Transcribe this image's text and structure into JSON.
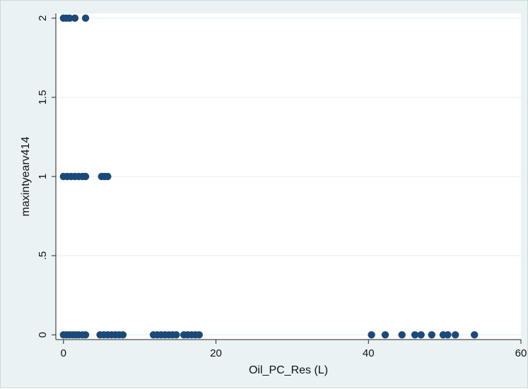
{
  "chart_data": {
    "type": "scatter",
    "title": "",
    "xlabel": "Oil_PC_Res (L)",
    "ylabel": "maxintyearv414",
    "xlim": [
      -1,
      60
    ],
    "ylim": [
      -0.03,
      2.03
    ],
    "x_ticks": [
      "0",
      "20",
      "40",
      "60"
    ],
    "x_tick_values": [
      0,
      20,
      40,
      60
    ],
    "y_ticks": [
      "0",
      ".5",
      "1",
      "1.5",
      "2"
    ],
    "y_tick_values": [
      0,
      0.5,
      1,
      1.5,
      2
    ],
    "grid": true,
    "colors": {
      "background": "#eaf2f3",
      "plot_area": "#ffffff",
      "grid": "#eaf2f3",
      "marker": "#1a4a7a"
    },
    "series": [
      {
        "points": [
          {
            "x": 0.0,
            "y": 2
          },
          {
            "x": 0.4,
            "y": 2
          },
          {
            "x": 0.8,
            "y": 2
          },
          {
            "x": 1.5,
            "y": 2
          },
          {
            "x": 2.9,
            "y": 2
          },
          {
            "x": 0.0,
            "y": 1
          },
          {
            "x": 0.5,
            "y": 1
          },
          {
            "x": 1.0,
            "y": 1
          },
          {
            "x": 1.5,
            "y": 1
          },
          {
            "x": 2.0,
            "y": 1
          },
          {
            "x": 2.5,
            "y": 1
          },
          {
            "x": 2.9,
            "y": 1
          },
          {
            "x": 5.0,
            "y": 1
          },
          {
            "x": 5.4,
            "y": 1
          },
          {
            "x": 5.8,
            "y": 1
          },
          {
            "x": 0.0,
            "y": 0
          },
          {
            "x": 0.4,
            "y": 0
          },
          {
            "x": 0.8,
            "y": 0
          },
          {
            "x": 1.2,
            "y": 0
          },
          {
            "x": 1.6,
            "y": 0
          },
          {
            "x": 2.0,
            "y": 0
          },
          {
            "x": 2.5,
            "y": 0
          },
          {
            "x": 2.9,
            "y": 0
          },
          {
            "x": 4.8,
            "y": 0
          },
          {
            "x": 5.3,
            "y": 0
          },
          {
            "x": 5.8,
            "y": 0
          },
          {
            "x": 6.3,
            "y": 0
          },
          {
            "x": 6.8,
            "y": 0
          },
          {
            "x": 7.3,
            "y": 0
          },
          {
            "x": 7.8,
            "y": 0
          },
          {
            "x": 11.8,
            "y": 0
          },
          {
            "x": 12.3,
            "y": 0
          },
          {
            "x": 12.8,
            "y": 0
          },
          {
            "x": 13.3,
            "y": 0
          },
          {
            "x": 13.8,
            "y": 0
          },
          {
            "x": 14.3,
            "y": 0
          },
          {
            "x": 14.8,
            "y": 0
          },
          {
            "x": 15.8,
            "y": 0
          },
          {
            "x": 16.3,
            "y": 0
          },
          {
            "x": 16.8,
            "y": 0
          },
          {
            "x": 17.3,
            "y": 0
          },
          {
            "x": 17.8,
            "y": 0
          },
          {
            "x": 40.4,
            "y": 0
          },
          {
            "x": 42.2,
            "y": 0
          },
          {
            "x": 44.4,
            "y": 0
          },
          {
            "x": 46.1,
            "y": 0
          },
          {
            "x": 46.9,
            "y": 0
          },
          {
            "x": 48.3,
            "y": 0
          },
          {
            "x": 49.8,
            "y": 0
          },
          {
            "x": 50.4,
            "y": 0
          },
          {
            "x": 51.4,
            "y": 0
          },
          {
            "x": 53.9,
            "y": 0
          }
        ]
      }
    ]
  }
}
